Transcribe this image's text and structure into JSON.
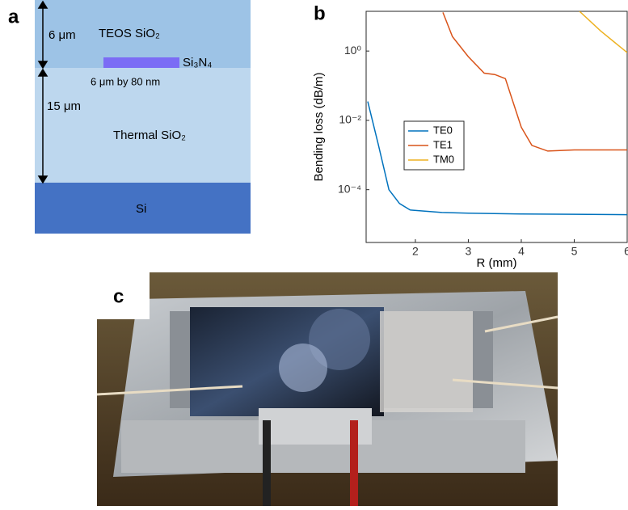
{
  "panel_labels": [
    "a",
    "b",
    "c"
  ],
  "diagram": {
    "top_thickness": "6 μm",
    "top_layer": "TEOS SiO₂",
    "core": "Si₃N₄",
    "core_size": "6 μm by 80 nm",
    "bottom_thickness": "15 μm",
    "bottom_layer": "Thermal SiO₂",
    "substrate": "Si"
  },
  "chart_data": {
    "type": "line",
    "xlabel": "R (mm)",
    "ylabel": "Bending loss (dB/m)",
    "log_y": true,
    "xlim": [
      1.07,
      6
    ],
    "xticks": [
      2,
      3,
      4,
      5,
      6
    ],
    "ylim": [
      3e-06,
      14
    ],
    "yticks": [
      {
        "value": 0.0001,
        "label": "10⁻⁴"
      },
      {
        "value": 0.01,
        "label": "10⁻²"
      },
      {
        "value": 1,
        "label": "10⁰"
      }
    ],
    "series": [
      {
        "name": "TE0",
        "color": "#0072bd",
        "x": [
          1.1,
          1.3,
          1.5,
          1.7,
          1.9,
          2.5,
          3,
          4,
          5,
          6
        ],
        "values": [
          0.035,
          0.002,
          0.0001,
          4e-05,
          2.6e-05,
          2.2e-05,
          2.1e-05,
          2e-05,
          1.95e-05,
          1.9e-05
        ]
      },
      {
        "name": "TE1",
        "color": "#d95319",
        "x": [
          2.52,
          2.7,
          3,
          3.3,
          3.5,
          3.7,
          4,
          4.2,
          4.5,
          5,
          6
        ],
        "values": [
          13,
          2.6,
          0.69,
          0.23,
          0.21,
          0.16,
          0.0063,
          0.0019,
          0.0013,
          0.0014,
          0.0014
        ]
      },
      {
        "name": "TM0",
        "color": "#edb120",
        "x": [
          5.1,
          5.5,
          6
        ],
        "values": [
          14,
          3.8,
          0.9
        ]
      }
    ]
  }
}
